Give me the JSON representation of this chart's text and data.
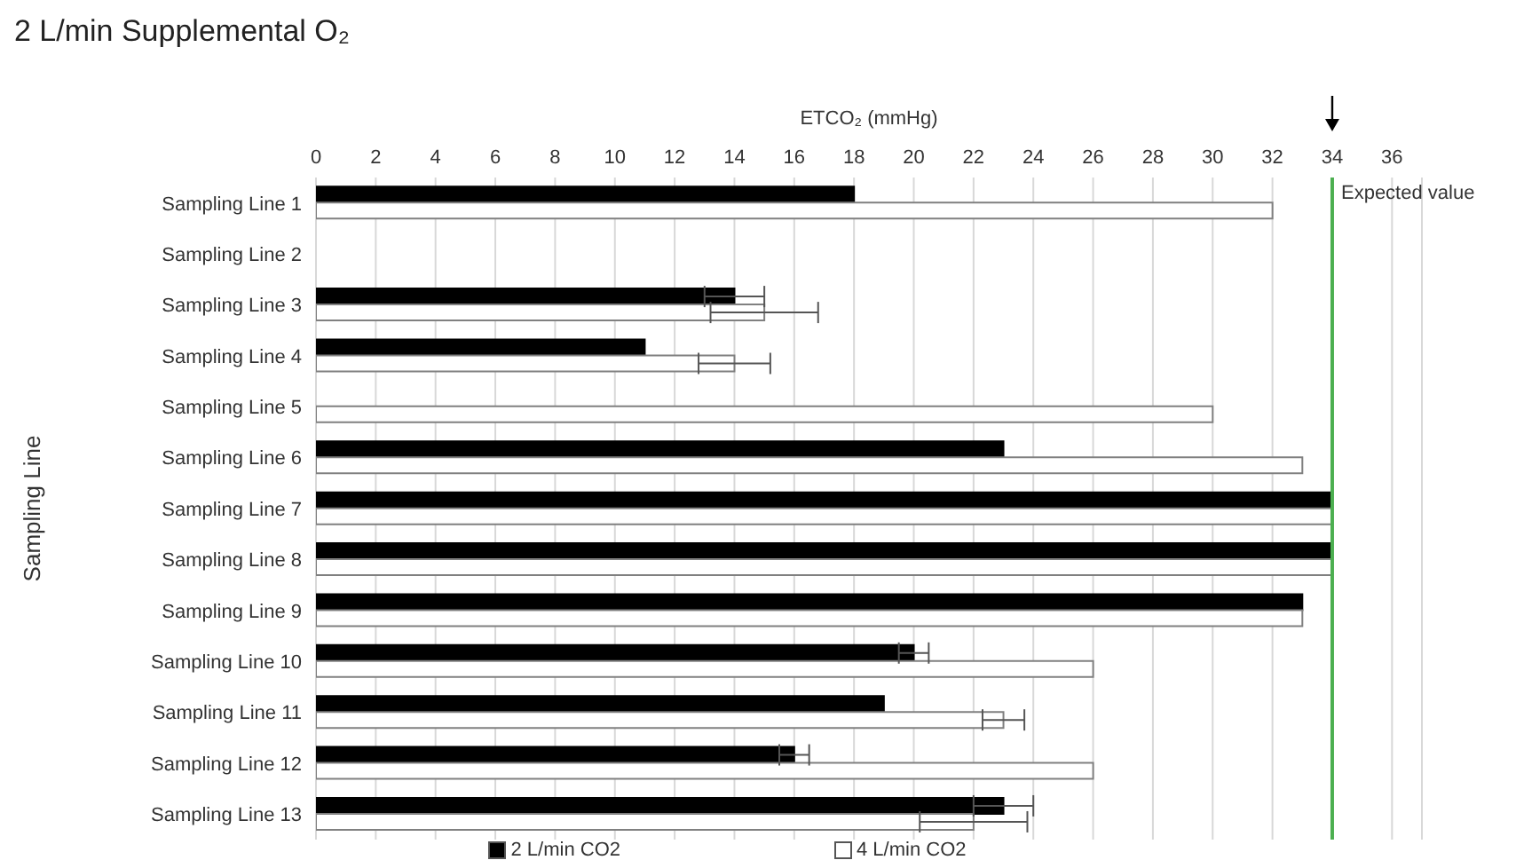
{
  "chart_data": {
    "type": "bar",
    "orientation": "horizontal",
    "title": "2 L/min Supplemental O₂",
    "xlabel": "ETCO₂ (mmHg)",
    "ylabel": "Sampling Line",
    "categories": [
      "Sampling Line 1",
      "Sampling Line 2",
      "Sampling Line 3",
      "Sampling Line 4",
      "Sampling Line 5",
      "Sampling Line 6",
      "Sampling Line 7",
      "Sampling Line 8",
      "Sampling Line 9",
      "Sampling Line 10",
      "Sampling Line 11",
      "Sampling Line 12",
      "Sampling Line 13"
    ],
    "series": [
      {
        "name": "2 L/min CO2",
        "color": "#000000",
        "values": [
          18,
          null,
          14,
          11,
          null,
          23,
          34,
          34,
          33,
          20,
          19,
          16,
          23
        ],
        "errors": [
          null,
          null,
          1,
          null,
          null,
          null,
          null,
          null,
          null,
          0.5,
          null,
          0.5,
          1
        ]
      },
      {
        "name": "4 L/min CO2",
        "color": "#ffffff",
        "values": [
          32,
          null,
          15,
          14,
          30,
          33,
          34,
          34,
          33,
          26,
          23,
          26,
          22
        ],
        "errors": [
          null,
          null,
          1.8,
          1.2,
          null,
          null,
          null,
          null,
          null,
          null,
          0.7,
          null,
          1.8
        ]
      }
    ],
    "xlim": [
      0,
      37
    ],
    "xticks": [
      0,
      2,
      4,
      6,
      8,
      10,
      12,
      14,
      16,
      18,
      20,
      22,
      24,
      26,
      28,
      30,
      32,
      34,
      36
    ],
    "ref_lines": [
      {
        "axis": "x",
        "value": 34,
        "label": "Expected value",
        "color": "#4caf50"
      }
    ],
    "grid": "x",
    "legend": "bottom"
  }
}
